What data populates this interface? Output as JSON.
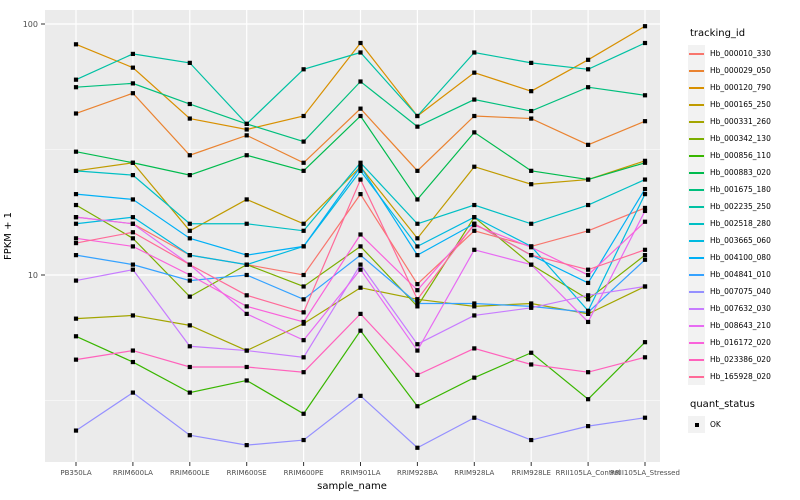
{
  "chart_data": {
    "type": "line",
    "title": "",
    "xlabel": "sample_name",
    "ylabel": "FPKM + 1",
    "y_scale": "log10",
    "ylim": [
      1.8,
      115
    ],
    "y_ticks": [
      100,
      10
    ],
    "y_tick_labels": [
      "100",
      "10"
    ],
    "y_minor_gridlines": [
      31.62,
      3.162
    ],
    "grid": true,
    "panel_bg": "#EBEBEB",
    "grid_color": "#FFFFFF",
    "axis_text_color": "#4D4D4D",
    "marker": "black-square",
    "marker_color": "#000000",
    "legend_position": "right",
    "legend_title": "tracking_id",
    "quant_legend": {
      "title": "quant_status",
      "items": [
        "OK"
      ]
    },
    "categories": [
      "PB350LA",
      "RRIM600LA",
      "RRIM600LE",
      "RRIM600SE",
      "RRIM600PE",
      "RRIM901LA",
      "RRIM928BA",
      "RRIM928LA",
      "RRIM928LE",
      "RRII105LA_Control",
      "RRII105LA_Stressed"
    ],
    "series": [
      {
        "name": "Hb_000010_330",
        "color": "#F8766D",
        "values": [
          17,
          16,
          12,
          11,
          10,
          21,
          9.2,
          15,
          13,
          15,
          18.5
        ]
      },
      {
        "name": "Hb_000029_050",
        "color": "#EA8331",
        "values": [
          44,
          53,
          30,
          36,
          28,
          46,
          26,
          43,
          42,
          33,
          41
        ]
      },
      {
        "name": "Hb_000120_790",
        "color": "#D89000",
        "values": [
          83,
          67,
          42,
          38,
          43,
          84,
          43,
          64,
          54,
          72,
          98
        ]
      },
      {
        "name": "Hb_000165_250",
        "color": "#C09B00",
        "values": [
          26,
          28,
          15,
          20,
          16,
          27,
          14,
          27,
          23,
          24,
          28.5
        ]
      },
      {
        "name": "Hb_000331_260",
        "color": "#A3A500",
        "values": [
          6.7,
          6.9,
          6.3,
          5.0,
          6.4,
          8.9,
          8.0,
          7.5,
          7.7,
          7.0,
          9.0
        ]
      },
      {
        "name": "Hb_000342_130",
        "color": "#7CAE00",
        "values": [
          19,
          14,
          8.2,
          11,
          9.0,
          13,
          7.5,
          17,
          11,
          8.0,
          12
        ]
      },
      {
        "name": "Hb_000856_110",
        "color": "#39B600",
        "values": [
          5.7,
          4.5,
          3.4,
          3.8,
          2.8,
          6.0,
          3.0,
          3.9,
          4.9,
          3.2,
          5.4
        ]
      },
      {
        "name": "Hb_000883_020",
        "color": "#00BB4E",
        "values": [
          31,
          28,
          25,
          30,
          26,
          43,
          20,
          37,
          26,
          24,
          28
        ]
      },
      {
        "name": "Hb_001675_180",
        "color": "#00BF7D",
        "values": [
          56,
          58,
          48,
          40,
          34,
          59,
          39,
          50,
          45,
          56,
          52
        ]
      },
      {
        "name": "Hb_002235_250",
        "color": "#00C1A3",
        "values": [
          60,
          76,
          70,
          40,
          66,
          77,
          43,
          77,
          70,
          66,
          84
        ]
      },
      {
        "name": "Hb_002518_280",
        "color": "#00BFC4",
        "values": [
          26,
          25,
          16,
          16,
          15,
          28,
          16,
          19,
          16,
          19,
          24
        ]
      },
      {
        "name": "Hb_003665_060",
        "color": "#00BAE0",
        "values": [
          16,
          17,
          12,
          11,
          13,
          26,
          13,
          17,
          13,
          7.2,
          21
        ]
      },
      {
        "name": "Hb_004100_080",
        "color": "#00B0F6",
        "values": [
          21,
          20,
          14,
          12,
          13,
          27,
          12,
          16,
          12,
          9.3,
          22
        ]
      },
      {
        "name": "Hb_004841_010",
        "color": "#35A2FF",
        "values": [
          12,
          11,
          9.5,
          10,
          8.0,
          12,
          7.7,
          7.7,
          7.5,
          7.1,
          11.5
        ]
      },
      {
        "name": "Hb_007075_040",
        "color": "#9590FF",
        "values": [
          2.4,
          3.4,
          2.3,
          2.1,
          2.2,
          3.3,
          2.05,
          2.7,
          2.2,
          2.5,
          2.7
        ]
      },
      {
        "name": "Hb_007632_030",
        "color": "#C77CFF",
        "values": [
          9.5,
          10.5,
          5.2,
          5.0,
          4.7,
          11,
          5.3,
          6.9,
          7.4,
          8.3,
          9.0
        ]
      },
      {
        "name": "Hb_008643_210",
        "color": "#E76BF3",
        "values": [
          17,
          16,
          11,
          7.0,
          5.5,
          10.5,
          5.0,
          12.6,
          11,
          6.5,
          18
        ]
      },
      {
        "name": "Hb_016172_020",
        "color": "#FA62DB",
        "values": [
          14,
          13,
          10,
          7.5,
          6.5,
          14.5,
          8.7,
          15.8,
          12.9,
          10,
          16.3
        ]
      },
      {
        "name": "Hb_023386_020",
        "color": "#FF62BC",
        "values": [
          4.6,
          5.0,
          4.3,
          4.3,
          4.1,
          7.0,
          4.0,
          5.1,
          4.4,
          4.1,
          4.7
        ]
      },
      {
        "name": "Hb_165928_020",
        "color": "#FF6A98",
        "values": [
          13.4,
          14.8,
          11,
          8.3,
          7.1,
          24,
          8.0,
          16,
          12,
          10.5,
          12.6
        ]
      }
    ]
  }
}
